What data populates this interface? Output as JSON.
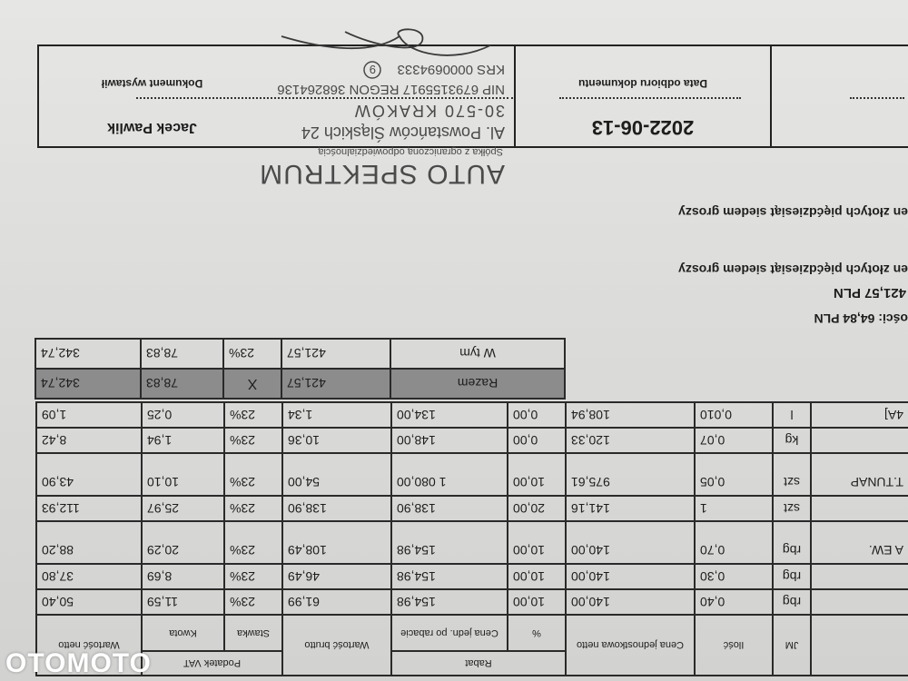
{
  "table": {
    "headers": {
      "jm": "JM",
      "qty": "Ilość",
      "price": "Cena jednostkowa netto",
      "discount_group": "Rabat",
      "discount_pct": "%",
      "price_after": "Cena jedn. po rabacie",
      "gross": "Wartość brutto",
      "vat_group": "Podatek VAT",
      "vat_rate": "Stawka",
      "vat_amount": "Kwota",
      "net": "Wartość netto"
    },
    "rows": [
      {
        "name": "",
        "jm": "rbg",
        "qty": "0,40",
        "price": "140,00",
        "disc": "10,00",
        "price_after": "154,98",
        "gross": "61,99",
        "rate": "23%",
        "vat": "11,59",
        "net": "50,40"
      },
      {
        "name": "",
        "jm": "rbg",
        "qty": "0,30",
        "price": "140,00",
        "disc": "10,00",
        "price_after": "154,98",
        "gross": "46,49",
        "rate": "23%",
        "vat": "8,69",
        "net": "37,80"
      },
      {
        "name": "A EW.",
        "jm": "rbg",
        "qty": "0,70",
        "price": "140,00",
        "disc": "10,00",
        "price_after": "154,98",
        "gross": "108,49",
        "rate": "23%",
        "vat": "20,29",
        "net": "88,20"
      },
      {
        "name": "",
        "jm": "szt",
        "qty": "1",
        "price": "141,16",
        "disc": "20,00",
        "price_after": "138,90",
        "gross": "138,90",
        "rate": "23%",
        "vat": "25,97",
        "net": "112,93"
      },
      {
        "name": "T.TUNAP",
        "jm": "szt",
        "qty": "0,05",
        "price": "975,61",
        "disc": "10,00",
        "price_after": "1 080,00",
        "gross": "54,00",
        "rate": "23%",
        "vat": "10,10",
        "net": "43,90"
      },
      {
        "name": "",
        "jm": "kg",
        "qty": "0,07",
        "price": "120,33",
        "disc": "0,00",
        "price_after": "148,00",
        "gross": "10,36",
        "rate": "23%",
        "vat": "1,94",
        "net": "8,42"
      },
      {
        "name": "4A]",
        "jm": "l",
        "qty": "0,010",
        "price": "108,94",
        "disc": "0,00",
        "price_after": "134,00",
        "gross": "1,34",
        "rate": "23%",
        "vat": "0,25",
        "net": "1,09"
      }
    ],
    "total": {
      "label": "Razem",
      "gross": "421,57",
      "rate": "X",
      "vat": "78,83",
      "net": "342,74"
    },
    "including": {
      "label": "W tym",
      "gross": "421,57",
      "rate": "23%",
      "vat": "78,83",
      "net": "342,74"
    }
  },
  "summary": {
    "vat_line": "ości: 64,84 PLN",
    "total_line": "421,57 PLN",
    "words_1": "en złotych pięćdziesiąt siedem groszy",
    "words_2": "en złotych pięćdziesiąt siedem groszy"
  },
  "footer": {
    "receipt_date": "2022-06-13",
    "receipt_label": "Data odbioru dokumentu",
    "issuer_name": "Jacek Pawlik",
    "issuer_label": "Dokument wystawił"
  },
  "stamp": {
    "company": "AUTO SPEKTRUM",
    "legal_form": "Spółka z ograniczoną odpowiedzialnością",
    "street": "Al. Powstańców Śląskich 24",
    "city": "30-570 KRAKÓW",
    "ids": "NIP 6793155917 REGON 368264136",
    "krs": "KRS 0000694333",
    "number": "9"
  },
  "watermark": "OTOMOTO",
  "colors": {
    "paper": "#dcdcda",
    "total_row": "#8c8c8c",
    "ink": "#1d1d1d",
    "stamp_ink": "#4a4a4a"
  }
}
